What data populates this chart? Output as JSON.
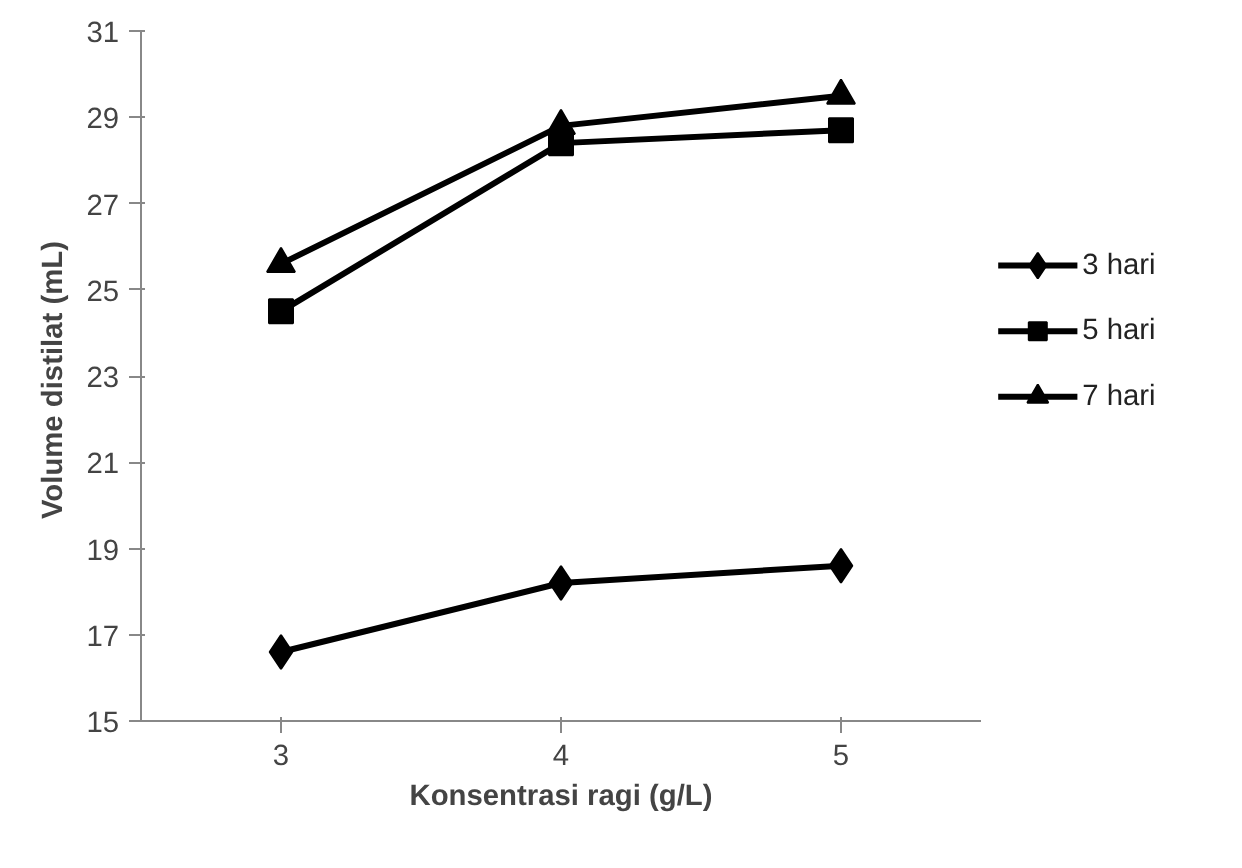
{
  "chart_data": {
    "type": "line",
    "xlabel": "Konsentrasi ragi (g/L)",
    "ylabel": "Volume  distilat (mL)",
    "categories": [
      "3",
      "4",
      "5"
    ],
    "series": [
      {
        "name": "3 hari",
        "color": "#000000",
        "marker": "diamond",
        "values": [
          16.6,
          18.2,
          18.6
        ]
      },
      {
        "name": "5 hari",
        "color": "#000000",
        "marker": "square",
        "values": [
          24.5,
          28.4,
          28.7
        ]
      },
      {
        "name": "7 hari",
        "color": "#000000",
        "marker": "triangle",
        "values": [
          25.6,
          28.8,
          29.5
        ]
      }
    ],
    "ylim": [
      15,
      31
    ],
    "yticks": [
      15,
      17,
      19,
      21,
      23,
      25,
      27,
      29,
      31
    ],
    "legend": "right",
    "line_style": "solid"
  }
}
